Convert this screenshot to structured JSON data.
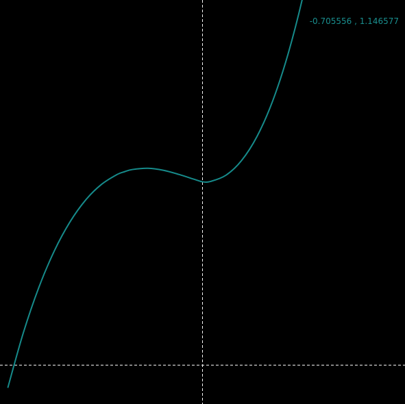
{
  "colors": {
    "background": "#000000",
    "curve": "#168b8b",
    "guides": "#ffffff",
    "readout": "#1a8f8f"
  },
  "readout": {
    "text": "-0.705556 , 1.146577"
  },
  "chart_data": {
    "type": "line",
    "title": "",
    "xlabel": "",
    "ylabel": "",
    "grid": false,
    "legend": "none",
    "xlim": [
      -1.3,
      1.3
    ],
    "ylim": [
      -0.25,
      2.35
    ],
    "crosshair": {
      "vertical_x": 0.0,
      "horizontal_y": 0.0
    },
    "series": [
      {
        "x": [
          -1.25,
          -1.15,
          -1.05,
          -0.95,
          -0.85,
          -0.75,
          -0.65,
          -0.55,
          -0.5,
          -0.45,
          -0.35,
          -0.25,
          -0.15,
          -0.05,
          0.0,
          0.05,
          0.15,
          0.25,
          0.35,
          0.45,
          0.55,
          0.65,
          0.75
        ],
        "y": [
          -0.146,
          0.209,
          0.502,
          0.738,
          0.923,
          1.063,
          1.162,
          1.226,
          1.245,
          1.259,
          1.267,
          1.254,
          1.227,
          1.195,
          1.18,
          1.182,
          1.222,
          1.316,
          1.472,
          1.699,
          2.005,
          2.396,
          2.88
        ]
      }
    ]
  }
}
